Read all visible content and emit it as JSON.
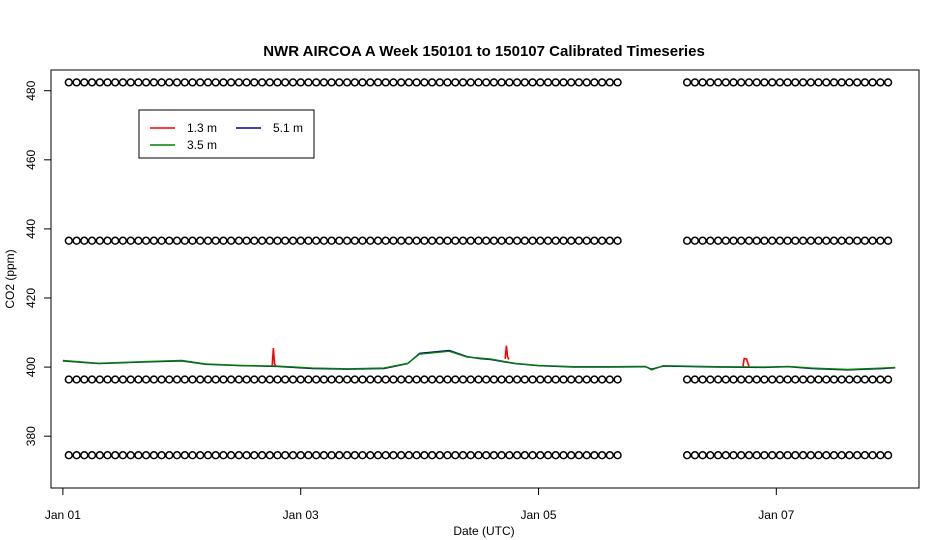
{
  "chart_data": {
    "type": "line",
    "title": "NWR AIRCOA A  Week 150101 to 150107  Calibrated Timeseries",
    "xlabel": "Date (UTC)",
    "ylabel": "CO2 (ppm)",
    "x_unit": "days since 2015-01-01 00:00 UTC",
    "xlim": [
      -0.1,
      7.2
    ],
    "ylim": [
      365,
      486
    ],
    "x_ticks": [
      {
        "value": 0,
        "label": "Jan 01"
      },
      {
        "value": 2,
        "label": "Jan 03"
      },
      {
        "value": 4,
        "label": "Jan 05"
      },
      {
        "value": 6,
        "label": "Jan 07"
      }
    ],
    "y_ticks": [
      {
        "value": 380,
        "label": "380"
      },
      {
        "value": 400,
        "label": "400"
      },
      {
        "value": 420,
        "label": "420"
      },
      {
        "value": 440,
        "label": "440"
      },
      {
        "value": 460,
        "label": "460"
      },
      {
        "value": 480,
        "label": "480"
      }
    ],
    "legend": {
      "placement": "top-left",
      "entries": [
        {
          "name": "1.3 m",
          "color": "#ff0000"
        },
        {
          "name": "3.5 m",
          "color": "#008000"
        },
        {
          "name": "5.1 m",
          "color": "#00008b"
        }
      ]
    },
    "series": [
      {
        "name": "5.1 m",
        "color": "#00008b",
        "x": [
          0.0,
          0.3,
          0.7,
          1.0,
          1.2,
          1.5,
          1.8,
          2.1,
          2.4,
          2.7,
          2.9,
          3.0,
          3.1,
          3.25,
          3.4,
          3.5,
          3.6,
          3.8,
          4.0,
          4.3,
          4.6,
          4.9,
          4.95,
          5.05,
          5.5,
          5.9,
          6.1,
          6.3,
          6.6,
          6.9,
          7.0
        ],
        "y": [
          401.8,
          401.0,
          401.5,
          401.8,
          400.8,
          400.4,
          400.2,
          399.6,
          399.4,
          399.6,
          401.0,
          404.0,
          404.3,
          404.8,
          403.0,
          402.5,
          402.2,
          401.0,
          400.4,
          400.0,
          400.0,
          400.1,
          399.4,
          400.3,
          400.0,
          399.9,
          400.1,
          399.6,
          399.2,
          399.6,
          399.8
        ]
      },
      {
        "name": "3.5 m",
        "color": "#008000",
        "x": [
          0.0,
          0.3,
          0.7,
          1.0,
          1.2,
          1.5,
          1.8,
          2.1,
          2.4,
          2.7,
          2.9,
          3.0,
          3.1,
          3.25,
          3.4,
          3.5,
          3.6,
          3.8,
          4.0,
          4.3,
          4.6,
          4.9,
          4.95,
          5.05,
          5.5,
          5.9,
          6.1,
          6.3,
          6.6,
          6.9,
          7.0
        ],
        "y": [
          401.9,
          401.1,
          401.6,
          401.9,
          400.9,
          400.5,
          400.3,
          399.7,
          399.5,
          399.7,
          401.1,
          403.8,
          404.1,
          404.6,
          402.9,
          402.6,
          402.3,
          401.1,
          400.5,
          400.1,
          400.1,
          400.2,
          399.2,
          400.4,
          400.1,
          400.0,
          400.2,
          399.7,
          399.3,
          399.7,
          399.9
        ]
      },
      {
        "name": "1.3 m",
        "color": "#ff0000",
        "x": [
          1.76,
          1.77,
          1.78,
          1.79,
          3.72,
          3.73,
          3.74,
          3.75,
          5.72,
          5.73,
          5.75,
          5.77
        ],
        "y": [
          400.5,
          405.5,
          401.0,
          400.4,
          402.4,
          406.2,
          403.0,
          402.2,
          400.2,
          402.5,
          402.3,
          400.2
        ]
      }
    ],
    "calibration_markers": {
      "marker": "open-circle",
      "levels_ppm": [
        482.4,
        436.6,
        396.4,
        374.5
      ],
      "x_start": 0.05,
      "x_end": 6.98,
      "gap": [
        4.7,
        5.2
      ],
      "spacing_days": 0.065
    }
  }
}
